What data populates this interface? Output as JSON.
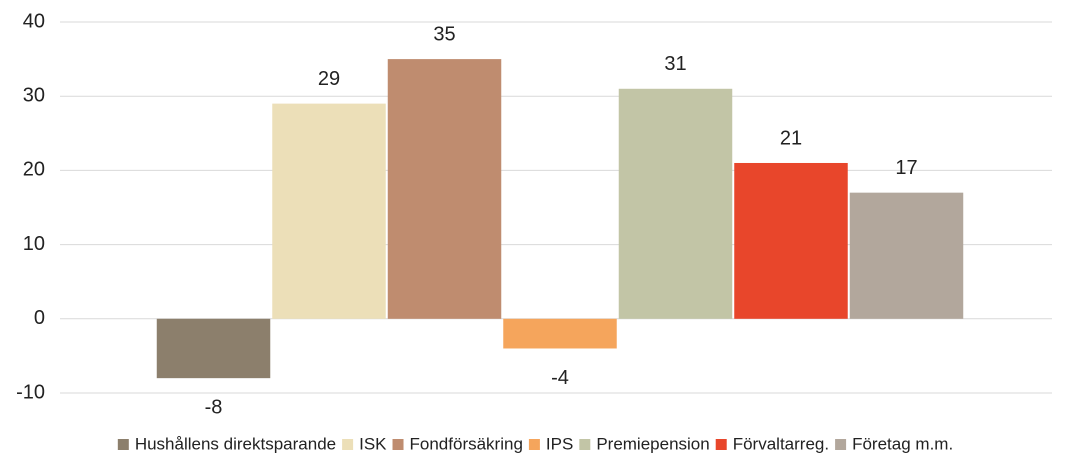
{
  "chart_data": {
    "type": "bar",
    "categories": [
      null
    ],
    "series": [
      {
        "name": "Hushållens direktsparande",
        "color": "#8c7f6c",
        "values": [
          -8
        ]
      },
      {
        "name": "ISK",
        "color": "#ecdfb8",
        "values": [
          29
        ]
      },
      {
        "name": "Fondförsäkring",
        "color": "#bf8c6f",
        "values": [
          35
        ]
      },
      {
        "name": "IPS",
        "color": "#f5a55c",
        "values": [
          -4
        ]
      },
      {
        "name": "Premiepension",
        "color": "#c2c5a6",
        "values": [
          31
        ]
      },
      {
        "name": "Förvaltarreg.",
        "color": "#e8462b",
        "values": [
          21
        ]
      },
      {
        "name": "Företag m.m.",
        "color": "#b2a79c",
        "values": [
          17
        ]
      }
    ],
    "ylim": [
      -10,
      40
    ],
    "yticks": [
      -10,
      0,
      10,
      20,
      30,
      40
    ],
    "grid": true,
    "legend": "bottom"
  }
}
